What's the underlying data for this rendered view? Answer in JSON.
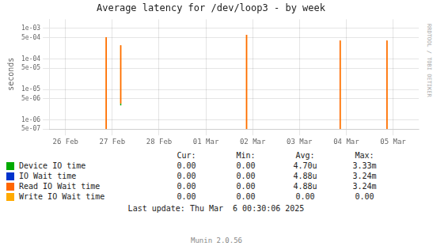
{
  "chart_data": {
    "type": "spike",
    "title": "Average latency for /dev/loop3 - by week",
    "y_label": "seconds",
    "watermark": "RRDTOOL / TOBI OETIKER",
    "footer": "Munin 2.0.56",
    "last_update": "Last update: Thu Mar  6 00:30:06 2025",
    "log": "y",
    "grid": true,
    "legend": "bottom",
    "xlim": [
      -0.35,
      7.55
    ],
    "xticks": [
      {
        "value": 0,
        "label": "26 Feb"
      },
      {
        "value": 1,
        "label": "27 Feb"
      },
      {
        "value": 2,
        "label": "28 Feb"
      },
      {
        "value": 3,
        "label": "01 Mar"
      },
      {
        "value": 4,
        "label": "02 Mar"
      },
      {
        "value": 5,
        "label": "03 Mar"
      },
      {
        "value": 6,
        "label": "04 Mar"
      },
      {
        "value": 7,
        "label": "05 Mar"
      }
    ],
    "ylim": [
      5e-07,
      0.002
    ],
    "yticks": [
      {
        "value": 5e-07,
        "label": "5e-07"
      },
      {
        "value": 1e-06,
        "label": "1e-06"
      },
      {
        "value": 5e-06,
        "label": "5e-06"
      },
      {
        "value": 1e-05,
        "label": "1e-05"
      },
      {
        "value": 5e-05,
        "label": "5e-05"
      },
      {
        "value": 0.0001,
        "label": "1e-04"
      },
      {
        "value": 0.0005,
        "label": "5e-04"
      },
      {
        "value": 0.001,
        "label": "1e-03"
      }
    ],
    "spikes": [
      {
        "x": 0.87,
        "y_top": 0.00052,
        "y_bot": 5e-07,
        "color": "#ff6600"
      },
      {
        "x": 0.87,
        "y_top": 0.00052,
        "y_bot": 5e-07,
        "color": "#ffaa00"
      },
      {
        "x": 1.18,
        "y_top": 0.00028,
        "y_bot": 3.5e-06,
        "color": "#ff6600"
      },
      {
        "x": 1.18,
        "y_top": 0.00028,
        "y_bot": 3.5e-06,
        "color": "#ffaa00"
      },
      {
        "x": 1.18,
        "y_top": 3.5e-06,
        "y_bot": 3e-06,
        "color": "#00aa00"
      },
      {
        "x": 3.87,
        "y_top": 0.00062,
        "y_bot": 5e-07,
        "color": "#ff6600"
      },
      {
        "x": 3.87,
        "y_top": 0.00062,
        "y_bot": 5e-07,
        "color": "#ffaa00"
      },
      {
        "x": 5.87,
        "y_top": 0.0004,
        "y_bot": 5e-07,
        "color": "#ff6600"
      },
      {
        "x": 5.87,
        "y_top": 0.0004,
        "y_bot": 5e-07,
        "color": "#ffaa00"
      },
      {
        "x": 6.87,
        "y_top": 0.0004,
        "y_bot": 5e-07,
        "color": "#ff6600"
      },
      {
        "x": 6.87,
        "y_top": 0.0004,
        "y_bot": 5e-07,
        "color": "#ffaa00"
      }
    ],
    "stats_headers": [
      "Cur:",
      "Min:",
      "Avg:",
      "Max:"
    ],
    "series": [
      {
        "name": "Device IO time",
        "color": "#00aa00",
        "stats": [
          "0.00",
          "0.00",
          "4.70u",
          "3.33m"
        ]
      },
      {
        "name": "IO Wait time",
        "color": "#0033cc",
        "stats": [
          "0.00",
          "0.00",
          "4.88u",
          "3.24m"
        ]
      },
      {
        "name": "Read IO Wait time",
        "color": "#ff6600",
        "stats": [
          "0.00",
          "0.00",
          "4.88u",
          "3.24m"
        ]
      },
      {
        "name": "Write IO Wait time",
        "color": "#ffaa00",
        "stats": [
          "0.00",
          "0.00",
          "0.00",
          "0.00"
        ]
      }
    ]
  }
}
